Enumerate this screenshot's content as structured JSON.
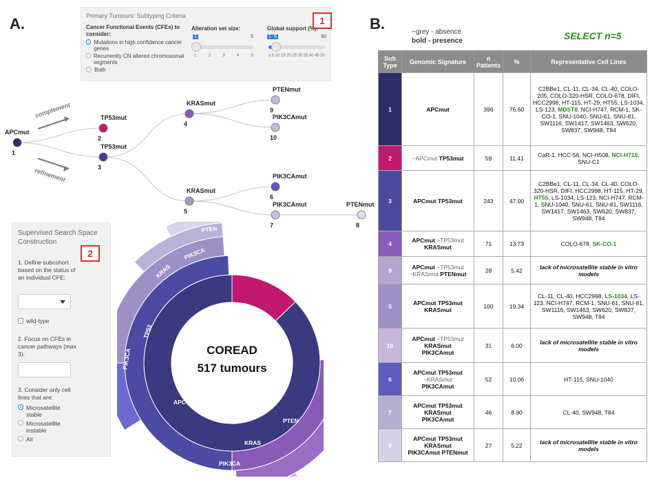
{
  "panel_a": {
    "letter": "A."
  },
  "panel_b": {
    "letter": "B."
  },
  "criteria": {
    "title": "Primary Tumours: Subtyping Criteria",
    "cfe_label": "Cancer Functional Events (CFEs) to consider:",
    "options": [
      "Mutations in high confidence cancer genes",
      "Recurrently CN altered chromosomal segments",
      "Both"
    ],
    "alteration_label": "Alteration set size:",
    "alteration_min": "1",
    "alteration_max": "5",
    "alteration_value": "1",
    "alteration_ticks": [
      "1",
      "2",
      "3",
      "4",
      "5"
    ],
    "support_label": "Global support (%):",
    "support_min": "1",
    "support_max": "50",
    "support_value": "5",
    "support_ticks": [
      "1",
      "5",
      "10",
      "15",
      "20",
      "25",
      "30",
      "35",
      "40",
      "45",
      "50"
    ],
    "box_number": "1"
  },
  "tree": {
    "edge_labels": {
      "complement": "complement",
      "refinement": "refinement"
    },
    "nodes": [
      {
        "name": "APCmut",
        "num": "1",
        "color": "#2e2e6b"
      },
      {
        "name": "TP53mut",
        "num": "2",
        "color": "#c2186e"
      },
      {
        "name": "TP53mut",
        "num": "3",
        "color": "#3f3f8f"
      },
      {
        "name": "KRASmut",
        "num": "4",
        "color": "#8a5ab8"
      },
      {
        "name": "PTENmut",
        "num": "9",
        "color": "#c8b6dc"
      },
      {
        "name": "PIK3CAmut",
        "num": "10",
        "color": "#c8b6dc"
      },
      {
        "name": "KRASmut",
        "num": "5",
        "color": "#a896c6"
      },
      {
        "name": "PIK3CAmut",
        "num": "6",
        "color": "#5b5bc0"
      },
      {
        "name": "PIK3CAmut",
        "num": "7",
        "color": "#c6c2dc"
      },
      {
        "name": "PTENmut",
        "num": "8",
        "color": "#dedbec"
      }
    ]
  },
  "search": {
    "title": "Supervised Search Space Construction",
    "box_number": "2",
    "step1": "1. Define subcohort based on the status of an individual CFE:",
    "wild_type": "wild-type",
    "step2": "2. Focus on CFEs in cancer pathways (max 3):",
    "step3": "3. Consider only cell lines that are:",
    "cell_options": [
      "Microsatellite stable",
      "Microsatellite instable",
      "All"
    ]
  },
  "sunburst": {
    "title": "COREAD",
    "subtitle": "517 tumours",
    "labels": [
      "TP53",
      "APC",
      "TP53",
      "KRAS",
      "PIK3CA",
      "PTEN",
      "PIK3CA",
      "KRAS",
      "PTEN",
      "PIK3CA"
    ]
  },
  "legend": {
    "grey": "~grey - absence",
    "bold": "bold - presence",
    "select": "SELECT n=5"
  },
  "table": {
    "headers": [
      "Sub Type",
      "Genomic Signature",
      "n Patients",
      "%",
      "Representative Cell Lines"
    ],
    "rows": [
      {
        "type": "1",
        "color": "#2e2e6b",
        "n": "396",
        "pct": "76.60"
      },
      {
        "type": "2",
        "color": "#c2186e",
        "n": "59",
        "pct": "11.41"
      },
      {
        "type": "3",
        "color": "#4a4a9e",
        "n": "243",
        "pct": "47.00"
      },
      {
        "type": "4",
        "color": "#8a5ab8",
        "n": "71",
        "pct": "13.73"
      },
      {
        "type": "9",
        "color": "#b8a2d2",
        "n": "28",
        "pct": "5.42"
      },
      {
        "type": "5",
        "color": "#9e90c6",
        "n": "100",
        "pct": "19.34"
      },
      {
        "type": "10",
        "color": "#c8b6dc",
        "n": "31",
        "pct": "6.00"
      },
      {
        "type": "6",
        "color": "#5b5bc0",
        "n": "52",
        "pct": "10.06"
      },
      {
        "type": "7",
        "color": "#b4b0d2",
        "n": "46",
        "pct": "8.90"
      },
      {
        "type": "8",
        "color": "#d4d0e6",
        "n": "27",
        "pct": "5.22"
      }
    ],
    "sig": {
      "r1": "APCmut",
      "r2_abs": "~APCmut",
      "r2": "TP53mut",
      "r3": "APCmut TP53mut",
      "r4a": "APCmut",
      "r4_abs": "~TP53mut",
      "r4b": "KRASmut",
      "r9a": "APCmut",
      "r9_abs1": "~TP53mut",
      "r9_abs2": "~KRASmut",
      "r9b": "PTENmut",
      "r5a": "APCmut TP53mut",
      "r5b": "KRASmut",
      "r10a": "APCmut",
      "r10_abs": "~TP53mut",
      "r10b": "KRASmut",
      "r10c": "PIK3CAmut",
      "r6a": "APCmut TP53mut",
      "r6_abs": "~KRASmut",
      "r6b": "PIK3CAmut",
      "r7a": "APCmut TP53mut",
      "r7b": "KRASmut",
      "r7c": "PIK3CAmut",
      "r8a": "APCmut TP53mut",
      "r8b": "KRASmut",
      "r8c": "PIK3CAmut PTENmut"
    },
    "cells": {
      "r1a": "C2BBe1, CL-11, CL-34, CL-40, COLO-205, COLO-320-HSR, COLO-678, DIFI, HCC2998, HT-115, HT-29, HT55, LS-1034, LS-123,",
      "r1g": "MDST8",
      "r1b": ", NCI-H747, RCM-1, SK-CO-1, SNU-1040, SNU-61, SNU-81, SW1116, SW1417, SW1463, SW620, SW837, SW948, T84",
      "r2a": "CaR-1, HCC-56, NCI-H508,",
      "r2g": "NCI-H716",
      "r2b": ", SNU-C1",
      "r3a": "C2BBe1, CL-11, CL-34, CL-40, COLO-320-HSR, DIFI, HCC2998, HT-115, HT-29,",
      "r3g": "HT55",
      "r3b": ", LS-1034, LS-123, NCI-H747, RCM-1, SNU-1040, SNU-61, SNU-81, SW1116, SW1417, SW1463, SW620, SW837, SW948, T84",
      "r4a": "COLO-678,",
      "r4g": "SK-CO-1",
      "lack": "lack of microsatellite stable in vitro models",
      "r5a": "CL-11, CL-40, HCC2998,",
      "r5g": "LS-1034",
      "r5b": ", LS-123, NCI-H747, RCM-1, SNU-61, SNU-81, SW1116, SW1463, SW620, SW837, SW948, T84",
      "r6": "HT-115, SNU-1040",
      "r7": "CL-40, SW948, T84"
    }
  }
}
